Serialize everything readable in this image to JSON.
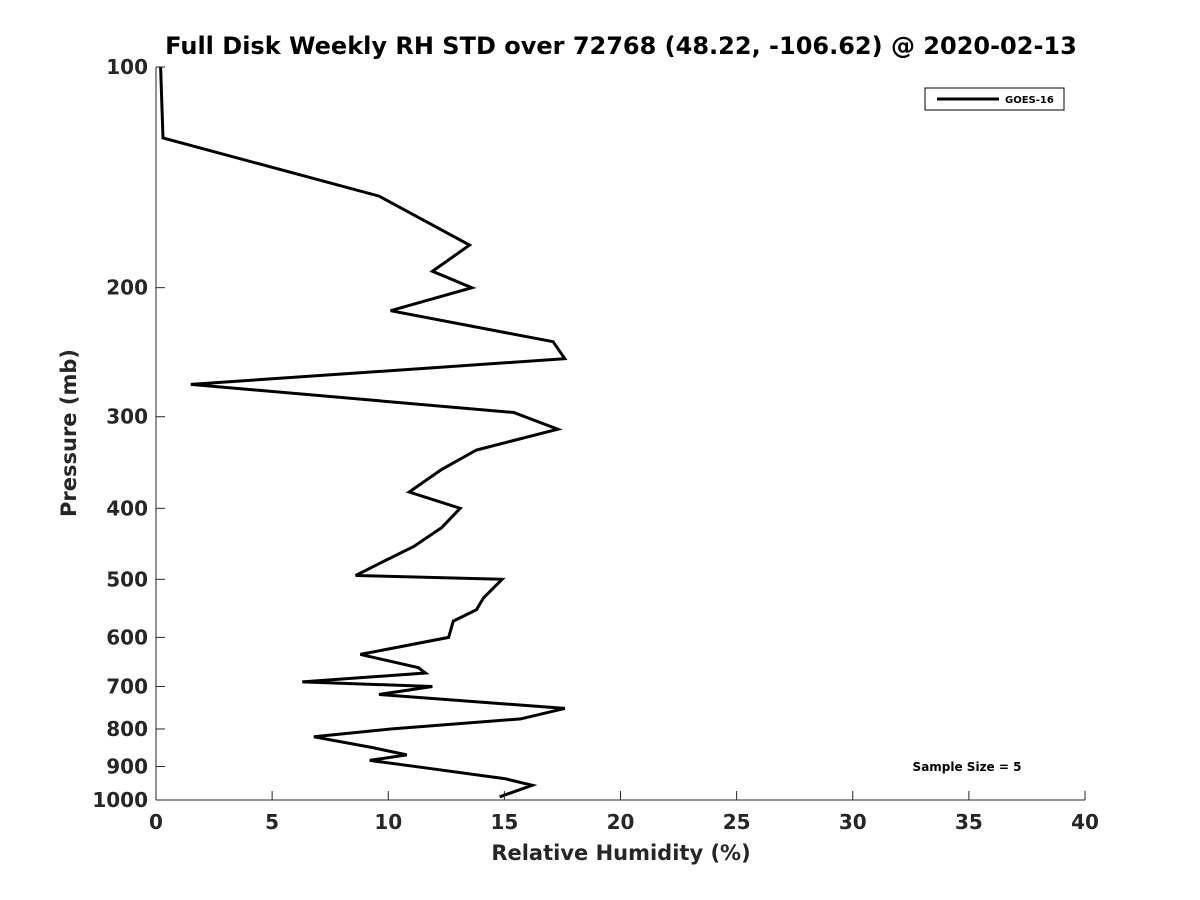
{
  "chart_data": {
    "type": "line",
    "title": "Full Disk Weekly RH STD over 72768 (48.22, -106.62) @ 2020-02-13",
    "xlabel": "Relative Humidity (%)",
    "ylabel": "Pressure (mb)",
    "xlim": [
      0,
      40
    ],
    "ylim": [
      100,
      1000
    ],
    "y_scale": "log",
    "y_reversed": true,
    "x_ticks": [
      "0",
      "5",
      "10",
      "15",
      "20",
      "25",
      "30",
      "35",
      "40"
    ],
    "y_ticks": [
      "100",
      "200",
      "300",
      "400",
      "500",
      "600",
      "700",
      "800",
      "900",
      "1000"
    ],
    "grid": false,
    "legend_position": "top-right",
    "annotation": "Sample Size = 5",
    "series": [
      {
        "name": "GOES-16",
        "color": "#000000",
        "points": [
          [
            0.2,
            100
          ],
          [
            0.3,
            125
          ],
          [
            9.6,
            150
          ],
          [
            13.5,
            175
          ],
          [
            11.9,
            190
          ],
          [
            13.6,
            200
          ],
          [
            10.1,
            215
          ],
          [
            17.1,
            237
          ],
          [
            17.6,
            250
          ],
          [
            1.5,
            271
          ],
          [
            15.4,
            296
          ],
          [
            17.3,
            312
          ],
          [
            13.8,
            333
          ],
          [
            12.3,
            354
          ],
          [
            10.9,
            380
          ],
          [
            13.1,
            400
          ],
          [
            12.3,
            425
          ],
          [
            11.1,
            451
          ],
          [
            9.6,
            476
          ],
          [
            8.6,
            494
          ],
          [
            14.9,
            500
          ],
          [
            14.1,
            530
          ],
          [
            13.8,
            550
          ],
          [
            12.8,
            570
          ],
          [
            12.6,
            600
          ],
          [
            8.8,
            633
          ],
          [
            11.3,
            660
          ],
          [
            11.6,
            671
          ],
          [
            6.3,
            690
          ],
          [
            11.9,
            700
          ],
          [
            9.6,
            718
          ],
          [
            17.6,
            750
          ],
          [
            15.7,
            775
          ],
          [
            10.1,
            800
          ],
          [
            6.8,
            820
          ],
          [
            9.3,
            848
          ],
          [
            10.8,
            868
          ],
          [
            9.2,
            883
          ],
          [
            11.7,
            905
          ],
          [
            15.0,
            935
          ],
          [
            16.2,
            955
          ],
          [
            14.8,
            990
          ]
        ]
      }
    ]
  }
}
